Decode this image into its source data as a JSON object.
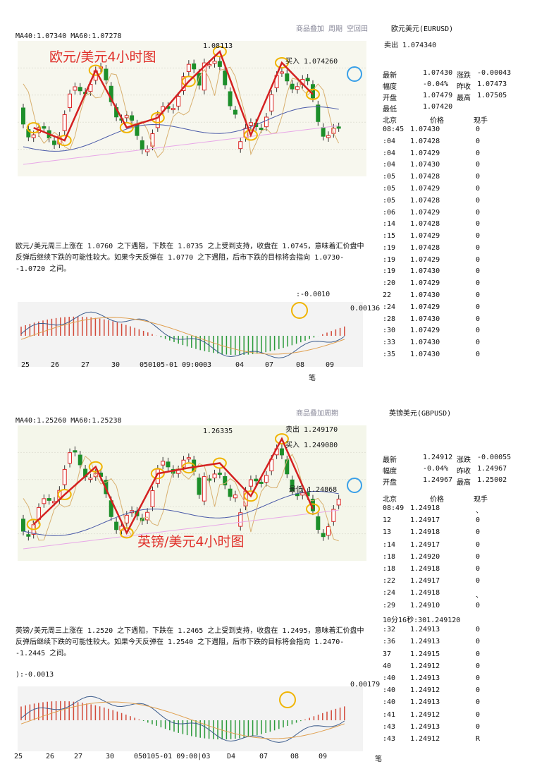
{
  "panels": [
    {
      "toolbar": "商品叠加 周期 空回田",
      "instrument": "欧元美元(EURUSD)",
      "ma_label": "MA40:1.07340 MA60:1.07278",
      "chart_title": "欧元/美元4小时图",
      "annotations": [
        "1.08113",
        "买入 1.074260"
      ],
      "sell": "卖出 1.074340",
      "quote_rows": [
        [
          "最新",
          "1.07430",
          "涨跌",
          "-0.00043"
        ],
        [
          "幅度",
          "-0.04%",
          "昨收",
          "1.07473"
        ],
        [
          "开盘",
          "1.07479",
          "最高",
          "1.07505"
        ],
        [
          "最低",
          "1.07420"
        ]
      ],
      "ticks_header": [
        "北京",
        "价格",
        "现手"
      ],
      "ticks": [
        [
          "08:45",
          "1.07430",
          "0"
        ],
        [
          ":04",
          "1.07428",
          "0"
        ],
        [
          ":04",
          "1.07429",
          "0"
        ],
        [
          ":04",
          "1.07430",
          "0"
        ],
        [
          ":05",
          "1.07428",
          "0"
        ],
        [
          ":05",
          "1.07429",
          "0"
        ],
        [
          ":05",
          "1.07428",
          "0"
        ],
        [
          ":06",
          "1.07429",
          "0"
        ],
        [
          ":14",
          "1.07428",
          "0"
        ],
        [
          ":15",
          "1.07429",
          "0"
        ],
        [
          ":19",
          "1.07428",
          "0"
        ],
        [
          ":19",
          "1.07429",
          "0"
        ],
        [
          ":19",
          "1.07430",
          "0"
        ],
        [
          ":20",
          "1.07429",
          "0"
        ],
        [
          "22",
          "1.07430",
          "0"
        ],
        [
          ":24",
          "1.07429",
          "0"
        ],
        [
          ":28",
          "1.07430",
          "0"
        ],
        [
          ":30",
          "1.07429",
          "0"
        ],
        [
          ":33",
          "1.07430",
          "0"
        ],
        [
          ":35",
          "1.07430",
          "0"
        ]
      ],
      "commentary": "欧元/美元周三上涨在 1.0760 之下遇阻，下跌在 1.0735 之上受到支持，收盘在 1.0745，意味着汇价盘中反弹后继续下跌的可能性较大。如果今天反弹在 1.0770 之下遇阻，后市下跌的目标将会指向 1.0730--1.0720 之间。",
      "macd_label": ":-0.0010",
      "macd_side": "0.00136",
      "x_labels": [
        "25",
        "26",
        "27",
        "30",
        "0501",
        "05-01 09:00",
        "03",
        "04",
        "07",
        "08",
        "09"
      ],
      "footer": "笔"
    },
    {
      "toolbar": "商品叠加周期",
      "instrument": "英镑美元(GBPUSD)",
      "ma_label": "MA40:1.25260 MA60:1.25238",
      "chart_title": "英镑/美元4小时图",
      "annotations": [
        "1.26335",
        "卖出 1.249170",
        "买入 1.249080",
        "最低 1.24868"
      ],
      "quote_rows": [
        [
          "最新",
          "1.24912",
          "涨跌",
          "-0.00055"
        ],
        [
          "幅度",
          "-0.04%",
          "昨收",
          "1.24967"
        ],
        [
          "开盘",
          "1.24967",
          "最高",
          "1.25002"
        ]
      ],
      "ticks_header": [
        "北京",
        "价格",
        "现手"
      ],
      "ticks": [
        [
          "08:49",
          "1.24918",
          "、"
        ],
        [
          "12",
          "1.24917",
          "0"
        ],
        [
          "13",
          "1.24918",
          "0"
        ],
        [
          ":14",
          "1.24917",
          "0"
        ],
        [
          ":18",
          "1.24920",
          "0"
        ],
        [
          ":18",
          "1.24918",
          "0"
        ],
        [
          ":22",
          "1.24917",
          "0"
        ],
        [
          ":24",
          "1.24918",
          "、"
        ],
        [
          ":29",
          "1.24910",
          "0"
        ],
        [
          "10分16秒:301.249120"
        ],
        [
          ":32",
          "1.24913",
          "0"
        ],
        [
          ":36",
          "1.24913",
          "0"
        ],
        [
          "37",
          "1.24915",
          "0"
        ],
        [
          "40",
          "1.24912",
          "0"
        ],
        [
          ":40",
          "1.24913",
          "0"
        ],
        [
          ":40",
          "1.24912",
          "0"
        ],
        [
          ":40",
          "1.24913",
          "0"
        ],
        [
          ":41",
          "1.24912",
          "0"
        ],
        [
          ":43",
          "1.24913",
          "0"
        ],
        [
          ":43",
          "1.24912",
          "R"
        ]
      ],
      "commentary": "英镑/美元周三上涨在 1.2520 之下遇阻，下跌在 1.2465 之上受到支持，收盘在 1.2495，意味着汇价盘中反弹后继续下跌的可能性较大。如果今天反弹在 1.2540 之下遇阻，后市下跌的目标将会指向 1.2470--1.2445 之间。",
      "macd_label": "):-0.0013",
      "macd_side": "0.00179",
      "x_labels": [
        "25",
        "26",
        "27",
        "30",
        "050105-01 09:00|03",
        "D4",
        "07",
        "08",
        "09"
      ],
      "footer": "笔"
    }
  ]
}
